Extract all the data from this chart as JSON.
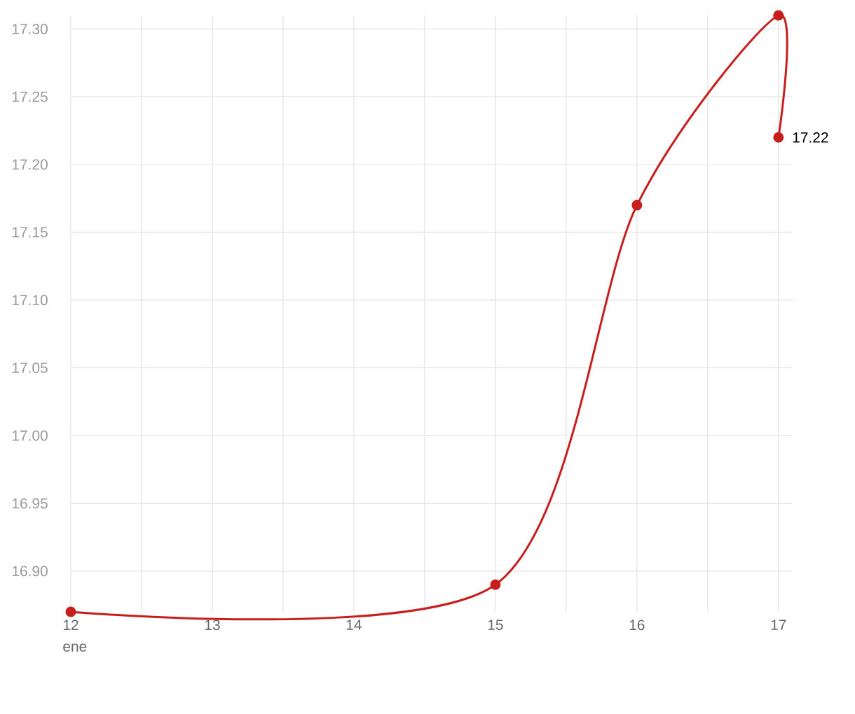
{
  "chart_data": {
    "type": "line",
    "xlabel": "ene",
    "x": [
      12,
      15,
      16,
      17,
      17
    ],
    "series": [
      {
        "color": "#c71e1d",
        "values": [
          16.87,
          16.89,
          17.17,
          17.31,
          17.22
        ],
        "value_labels": [
          null,
          null,
          null,
          null,
          "17.22"
        ]
      }
    ],
    "xlim": [
      12,
      17.1
    ],
    "xticks": [
      12,
      {
        "value": 12.5,
        "label": null
      },
      13,
      {
        "value": 13.5,
        "label": null
      },
      14,
      {
        "value": 14.5,
        "label": null
      },
      15,
      {
        "value": 15.5,
        "label": null
      },
      16,
      {
        "value": 16.5,
        "label": null
      },
      17
    ],
    "ylim": [
      16.87,
      17.31
    ],
    "yticks": [
      {
        "value": 16.9,
        "label": "16.90"
      },
      {
        "value": 16.95,
        "label": "16.95"
      },
      {
        "value": 17.0,
        "label": "17.00"
      },
      {
        "value": 17.05,
        "label": "17.05"
      },
      {
        "value": 17.1,
        "label": "17.10"
      },
      {
        "value": 17.15,
        "label": "17.15"
      },
      {
        "value": 17.2,
        "label": "17.20"
      },
      {
        "value": 17.25,
        "label": "17.25"
      },
      {
        "value": 17.3,
        "label": "17.30"
      }
    ],
    "grid": true,
    "marker": "circle",
    "line_style": "solid"
  }
}
